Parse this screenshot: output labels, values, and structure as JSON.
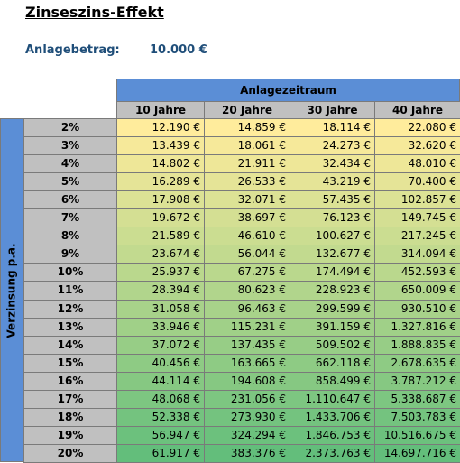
{
  "header": {
    "title": "Zinseszins-Effekt",
    "amount_label": "Anlagebetrag:",
    "amount_value": "10.000 €"
  },
  "table": {
    "group_header": "Anlagezeitraum",
    "row_header": "Verzinsung p.a.",
    "columns": [
      "10 Jahre",
      "20 Jahre",
      "30 Jahre",
      "40 Jahre"
    ],
    "rows": [
      [
        "2%",
        "12.190 €",
        "14.859 €",
        "18.114 €",
        "22.080 €"
      ],
      [
        "3%",
        "13.439 €",
        "18.061 €",
        "24.273 €",
        "32.620 €"
      ],
      [
        "4%",
        "14.802 €",
        "21.911 €",
        "32.434 €",
        "48.010 €"
      ],
      [
        "5%",
        "16.289 €",
        "26.533 €",
        "43.219 €",
        "70.400 €"
      ],
      [
        "6%",
        "17.908 €",
        "32.071 €",
        "57.435 €",
        "102.857 €"
      ],
      [
        "7%",
        "19.672 €",
        "38.697 €",
        "76.123 €",
        "149.745 €"
      ],
      [
        "8%",
        "21.589 €",
        "46.610 €",
        "100.627 €",
        "217.245 €"
      ],
      [
        "9%",
        "23.674 €",
        "56.044 €",
        "132.677 €",
        "314.094 €"
      ],
      [
        "10%",
        "25.937 €",
        "67.275 €",
        "174.494 €",
        "452.593 €"
      ],
      [
        "11%",
        "28.394 €",
        "80.623 €",
        "228.923 €",
        "650.009 €"
      ],
      [
        "12%",
        "31.058 €",
        "96.463 €",
        "299.599 €",
        "930.510 €"
      ],
      [
        "13%",
        "33.946 €",
        "115.231 €",
        "391.159 €",
        "1.327.816 €"
      ],
      [
        "14%",
        "37.072 €",
        "137.435 €",
        "509.502 €",
        "1.888.835 €"
      ],
      [
        "15%",
        "40.456 €",
        "163.665 €",
        "662.118 €",
        "2.678.635 €"
      ],
      [
        "16%",
        "44.114 €",
        "194.608 €",
        "858.499 €",
        "3.787.212 €"
      ],
      [
        "17%",
        "48.068 €",
        "231.056 €",
        "1.110.647 €",
        "5.338.687 €"
      ],
      [
        "18%",
        "52.338 €",
        "273.930 €",
        "1.433.706 €",
        "7.503.783 €"
      ],
      [
        "19%",
        "56.947 €",
        "324.294 €",
        "1.846.753 €",
        "10.516.675 €"
      ],
      [
        "20%",
        "61.917 €",
        "383.376 €",
        "2.373.763 €",
        "14.697.716 €"
      ]
    ]
  }
}
